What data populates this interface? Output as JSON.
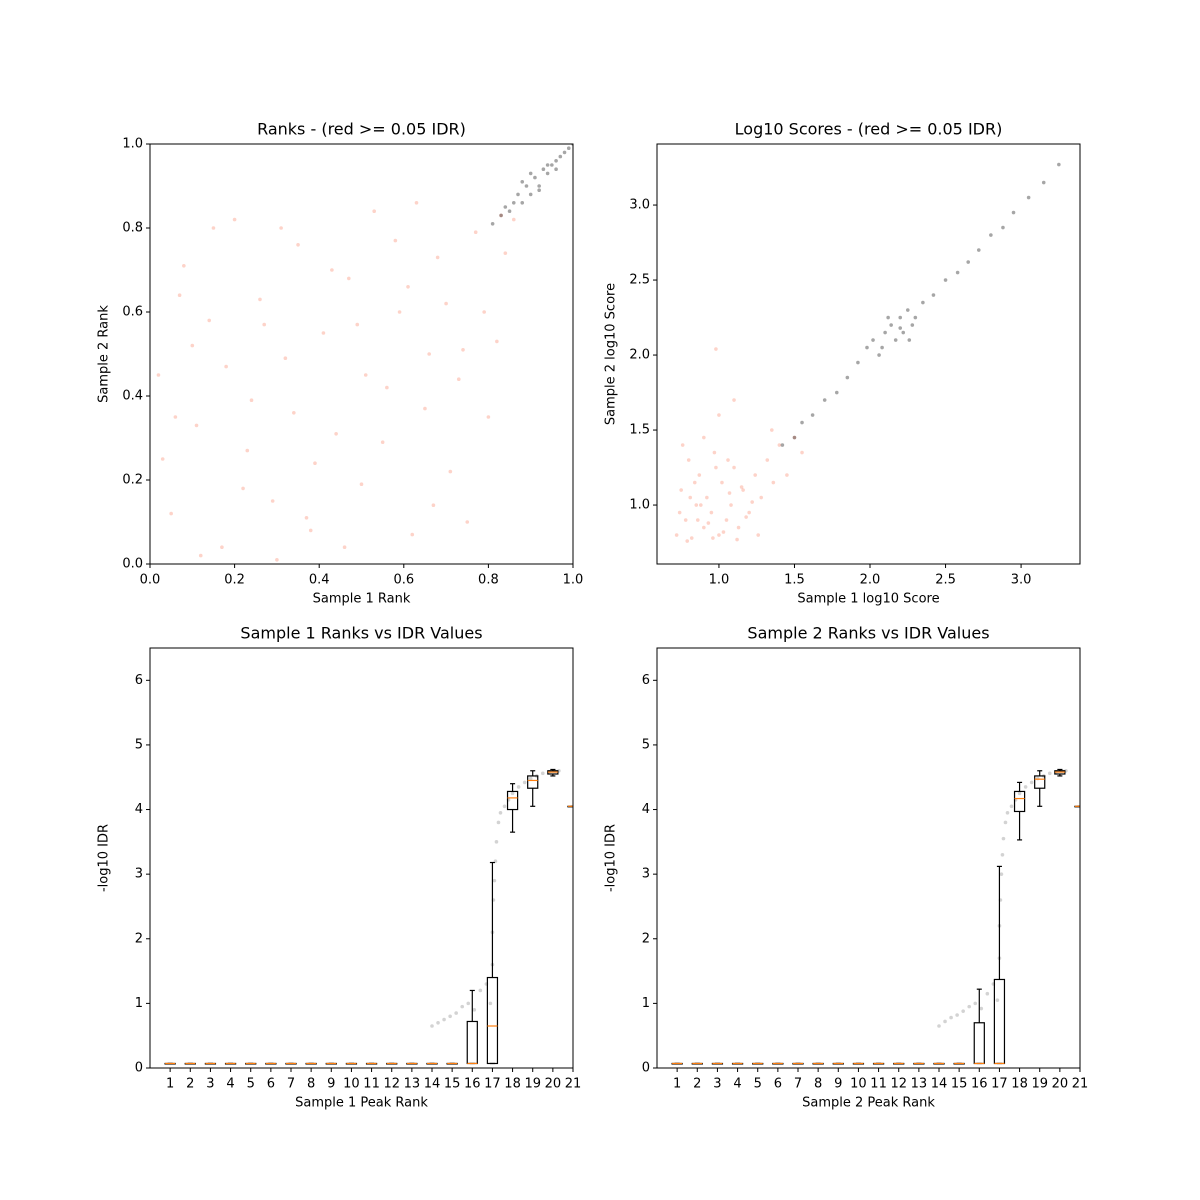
{
  "chart_data": [
    {
      "type": "scatter",
      "title": "Ranks - (red >= 0.05 IDR)",
      "x_label": "Sample 1 Rank",
      "y_label": "Sample 2 Rank",
      "xlim": [
        0,
        1
      ],
      "ylim": [
        0,
        1
      ],
      "xticks": [
        {
          "value": 0,
          "label": "0.0"
        },
        {
          "value": 0.2,
          "label": "0.2"
        },
        {
          "value": 0.4,
          "label": "0.4"
        },
        {
          "value": 0.6,
          "label": "0.6"
        },
        {
          "value": 0.8,
          "label": "0.8"
        },
        {
          "value": 1,
          "label": "1.0"
        }
      ],
      "yticks": [
        {
          "value": 0,
          "label": "0.0"
        },
        {
          "value": 0.2,
          "label": "0.2"
        },
        {
          "value": 0.4,
          "label": "0.4"
        },
        {
          "value": 0.6,
          "label": "0.6"
        },
        {
          "value": 0.8,
          "label": "0.8"
        },
        {
          "value": 1,
          "label": "1.0"
        }
      ],
      "series": [
        {
          "color": "#fa8064",
          "x": [
            0.02,
            0.05,
            0.08,
            0.11,
            0.14,
            0.17,
            0.2,
            0.23,
            0.26,
            0.29,
            0.32,
            0.35,
            0.38,
            0.41,
            0.44,
            0.47,
            0.5,
            0.53,
            0.56,
            0.59,
            0.62,
            0.65,
            0.68,
            0.71,
            0.74,
            0.77,
            0.8,
            0.83,
            0.03,
            0.07,
            0.12,
            0.18,
            0.24,
            0.31,
            0.37,
            0.43,
            0.49,
            0.55,
            0.61,
            0.67,
            0.73,
            0.79,
            0.84,
            0.1,
            0.22,
            0.34,
            0.46,
            0.58,
            0.7,
            0.82,
            0.15,
            0.27,
            0.39,
            0.51,
            0.63,
            0.75,
            0.86,
            0.06,
            0.3,
            0.66
          ],
          "y": [
            0.45,
            0.12,
            0.71,
            0.33,
            0.58,
            0.04,
            0.82,
            0.27,
            0.63,
            0.15,
            0.49,
            0.76,
            0.08,
            0.55,
            0.31,
            0.68,
            0.19,
            0.84,
            0.42,
            0.6,
            0.07,
            0.37,
            0.73,
            0.22,
            0.51,
            0.79,
            0.35,
            0.83,
            0.25,
            0.64,
            0.02,
            0.47,
            0.39,
            0.8,
            0.11,
            0.7,
            0.57,
            0.29,
            0.66,
            0.14,
            0.44,
            0.6,
            0.74,
            0.52,
            0.18,
            0.36,
            0.04,
            0.77,
            0.62,
            0.53,
            0.8,
            0.57,
            0.24,
            0.45,
            0.86,
            0.1,
            0.82,
            0.35,
            0.01,
            0.5
          ]
        },
        {
          "color": "#000000",
          "x": [
            0.81,
            0.83,
            0.84,
            0.85,
            0.86,
            0.87,
            0.88,
            0.89,
            0.9,
            0.91,
            0.92,
            0.93,
            0.94,
            0.95,
            0.96,
            0.97,
            0.98,
            0.99,
            1.0,
            0.88,
            0.9,
            0.92,
            0.94,
            0.96
          ],
          "y": [
            0.81,
            0.83,
            0.85,
            0.84,
            0.86,
            0.88,
            0.86,
            0.9,
            0.88,
            0.92,
            0.9,
            0.94,
            0.93,
            0.95,
            0.96,
            0.97,
            0.98,
            0.99,
            1.0,
            0.91,
            0.93,
            0.89,
            0.95,
            0.94
          ]
        }
      ]
    },
    {
      "type": "scatter",
      "title": "Log10 Scores - (red >= 0.05 IDR)",
      "x_label": "Sample 1 log10 Score",
      "y_label": "Sample 2 log10 Score",
      "xlim": [
        0.59,
        3.39
      ],
      "ylim": [
        0.607,
        3.407
      ],
      "xticks": [
        {
          "value": 1,
          "label": "1.0"
        },
        1.5,
        {
          "value": 2,
          "label": "2.0"
        },
        2.5,
        {
          "value": 3,
          "label": "3.0"
        }
      ],
      "yticks": [
        {
          "value": 1,
          "label": "1.0"
        },
        1.5,
        {
          "value": 2,
          "label": "2.0"
        },
        2.5,
        {
          "value": 3,
          "label": "3.0"
        }
      ],
      "series": [
        {
          "color": "#fa8064",
          "x": [
            0.72,
            0.75,
            0.78,
            0.8,
            0.82,
            0.85,
            0.87,
            0.9,
            0.92,
            0.95,
            0.97,
            1.0,
            1.02,
            1.05,
            1.08,
            1.1,
            1.13,
            1.16,
            1.2,
            1.24,
            1.28,
            1.32,
            1.36,
            1.4,
            1.45,
            1.5,
            0.74,
            0.79,
            0.84,
            0.88,
            0.93,
            0.98,
            1.03,
            1.07,
            1.12,
            1.18,
            1.22,
            0.76,
            0.86,
            0.96,
            1.06,
            1.15,
            0.9,
            1.0,
            0.81,
            1.26,
            1.35,
            1.55,
            0.98,
            1.1
          ],
          "y": [
            0.8,
            1.1,
            0.9,
            1.3,
            0.78,
            1.0,
            1.2,
            0.85,
            1.05,
            0.95,
            1.35,
            0.8,
            1.15,
            0.9,
            1.0,
            1.25,
            0.85,
            1.1,
            0.95,
            1.2,
            1.05,
            1.3,
            1.15,
            1.4,
            1.2,
            1.45,
            0.95,
            0.76,
            1.15,
            1.0,
            0.88,
            1.25,
            0.82,
            1.08,
            0.77,
            0.92,
            1.02,
            1.4,
            0.9,
            0.78,
            1.3,
            1.12,
            1.45,
            1.6,
            1.05,
            0.8,
            1.5,
            1.35,
            2.04,
            1.7
          ]
        },
        {
          "color": "#000000",
          "x": [
            1.42,
            1.5,
            1.55,
            1.62,
            1.7,
            1.78,
            1.85,
            1.92,
            1.98,
            2.02,
            2.06,
            2.1,
            2.14,
            2.17,
            2.2,
            2.22,
            2.25,
            2.28,
            2.3,
            2.35,
            2.42,
            2.5,
            2.58,
            2.65,
            2.72,
            2.8,
            2.88,
            2.95,
            3.05,
            3.15,
            3.25,
            2.12,
            2.2,
            2.26,
            2.08
          ],
          "y": [
            1.4,
            1.45,
            1.55,
            1.6,
            1.7,
            1.75,
            1.85,
            1.95,
            2.05,
            2.1,
            2.0,
            2.15,
            2.2,
            2.1,
            2.25,
            2.15,
            2.3,
            2.2,
            2.25,
            2.35,
            2.4,
            2.5,
            2.55,
            2.62,
            2.7,
            2.8,
            2.85,
            2.95,
            3.05,
            3.15,
            3.27,
            2.25,
            2.18,
            2.1,
            2.05
          ]
        }
      ]
    },
    {
      "type": "box",
      "title": "Sample 1 Ranks vs IDR Values",
      "x_label": "Sample 1 Peak Rank",
      "y_label": "-log10 IDR",
      "xlim": [
        0,
        21
      ],
      "ylim": [
        0,
        6.5
      ],
      "xticks": [
        1,
        2,
        3,
        4,
        5,
        6,
        7,
        8,
        9,
        10,
        11,
        12,
        13,
        14,
        15,
        16,
        17,
        18,
        19,
        20,
        21
      ],
      "yticks": [
        0,
        1,
        2,
        3,
        4,
        5,
        6
      ],
      "points": {
        "color": "#808080",
        "x": [
          14.0,
          14.3,
          14.6,
          14.9,
          15.2,
          15.5,
          15.8,
          16.1,
          16.4,
          16.7,
          16.9,
          17.0,
          17.0,
          17.05,
          17.1,
          17.15,
          17.2,
          17.3,
          17.4,
          17.6,
          17.8,
          18.0,
          18.3,
          18.6,
          18.9,
          19.2,
          19.5,
          19.8,
          20.1,
          20.3
        ],
        "y": [
          0.65,
          0.7,
          0.75,
          0.8,
          0.85,
          0.95,
          1.0,
          0.9,
          1.2,
          1.3,
          1.0,
          1.6,
          2.1,
          2.6,
          2.9,
          3.2,
          3.5,
          3.8,
          3.95,
          4.05,
          4.15,
          4.25,
          4.35,
          4.42,
          4.48,
          4.52,
          4.56,
          4.58,
          4.6,
          4.6
        ]
      },
      "whislo": [
        0.07,
        0.07,
        0.07,
        0.07,
        0.07,
        0.07,
        0.07,
        0.07,
        0.07,
        0.07,
        0.07,
        0.07,
        0.07,
        0.07,
        0.07,
        0.07,
        0.07,
        3.65,
        4.05,
        4.52,
        4.05
      ],
      "q1": [
        0.07,
        0.07,
        0.07,
        0.07,
        0.07,
        0.07,
        0.07,
        0.07,
        0.07,
        0.07,
        0.07,
        0.07,
        0.07,
        0.07,
        0.07,
        0.07,
        0.07,
        4.0,
        4.33,
        4.55,
        4.05
      ],
      "med": [
        0.07,
        0.07,
        0.07,
        0.07,
        0.07,
        0.07,
        0.07,
        0.07,
        0.07,
        0.07,
        0.07,
        0.07,
        0.07,
        0.07,
        0.07,
        0.07,
        0.65,
        4.18,
        4.45,
        4.58,
        4.05
      ],
      "q3": [
        0.07,
        0.07,
        0.07,
        0.07,
        0.07,
        0.07,
        0.07,
        0.07,
        0.07,
        0.07,
        0.07,
        0.07,
        0.07,
        0.07,
        0.07,
        0.72,
        1.4,
        4.28,
        4.52,
        4.6,
        4.05
      ],
      "whishi": [
        0.07,
        0.07,
        0.07,
        0.07,
        0.07,
        0.07,
        0.07,
        0.07,
        0.07,
        0.07,
        0.07,
        0.07,
        0.07,
        0.07,
        0.07,
        1.2,
        3.18,
        4.4,
        4.6,
        4.62,
        4.05
      ]
    },
    {
      "type": "box",
      "title": "Sample 2 Ranks vs IDR Values",
      "x_label": "Sample 2 Peak Rank",
      "y_label": "-log10 IDR",
      "xlim": [
        0,
        21
      ],
      "ylim": [
        0,
        6.5
      ],
      "xticks": [
        1,
        2,
        3,
        4,
        5,
        6,
        7,
        8,
        9,
        10,
        11,
        12,
        13,
        14,
        15,
        16,
        17,
        18,
        19,
        20,
        21
      ],
      "yticks": [
        0,
        1,
        2,
        3,
        4,
        5,
        6
      ],
      "points": {
        "color": "#808080",
        "x": [
          14.0,
          14.3,
          14.6,
          14.9,
          15.2,
          15.5,
          15.8,
          16.1,
          16.4,
          16.7,
          16.9,
          17.0,
          17.0,
          17.05,
          17.1,
          17.15,
          17.2,
          17.3,
          17.4,
          17.6,
          17.8,
          18.0,
          18.3,
          18.6,
          18.9,
          19.2,
          19.5,
          19.8,
          20.1,
          20.3
        ],
        "y": [
          0.65,
          0.72,
          0.78,
          0.82,
          0.88,
          0.95,
          1.0,
          0.92,
          1.15,
          1.3,
          1.05,
          1.7,
          2.2,
          2.6,
          3.0,
          3.3,
          3.55,
          3.8,
          3.95,
          4.05,
          4.15,
          4.25,
          4.35,
          4.42,
          4.48,
          4.52,
          4.56,
          4.58,
          4.6,
          4.6
        ]
      },
      "whislo": [
        0.07,
        0.07,
        0.07,
        0.07,
        0.07,
        0.07,
        0.07,
        0.07,
        0.07,
        0.07,
        0.07,
        0.07,
        0.07,
        0.07,
        0.07,
        0.07,
        0.07,
        3.53,
        4.05,
        4.52,
        4.05
      ],
      "q1": [
        0.07,
        0.07,
        0.07,
        0.07,
        0.07,
        0.07,
        0.07,
        0.07,
        0.07,
        0.07,
        0.07,
        0.07,
        0.07,
        0.07,
        0.07,
        0.07,
        0.07,
        3.97,
        4.33,
        4.55,
        4.05
      ],
      "med": [
        0.07,
        0.07,
        0.07,
        0.07,
        0.07,
        0.07,
        0.07,
        0.07,
        0.07,
        0.07,
        0.07,
        0.07,
        0.07,
        0.07,
        0.07,
        0.07,
        0.07,
        4.17,
        4.47,
        4.58,
        4.05
      ],
      "q3": [
        0.07,
        0.07,
        0.07,
        0.07,
        0.07,
        0.07,
        0.07,
        0.07,
        0.07,
        0.07,
        0.07,
        0.07,
        0.07,
        0.07,
        0.07,
        0.7,
        1.37,
        4.28,
        4.52,
        4.6,
        4.05
      ],
      "whishi": [
        0.07,
        0.07,
        0.07,
        0.07,
        0.07,
        0.07,
        0.07,
        0.07,
        0.07,
        0.07,
        0.07,
        0.07,
        0.07,
        0.07,
        0.07,
        1.22,
        3.12,
        4.42,
        4.6,
        4.62,
        4.05
      ]
    }
  ]
}
